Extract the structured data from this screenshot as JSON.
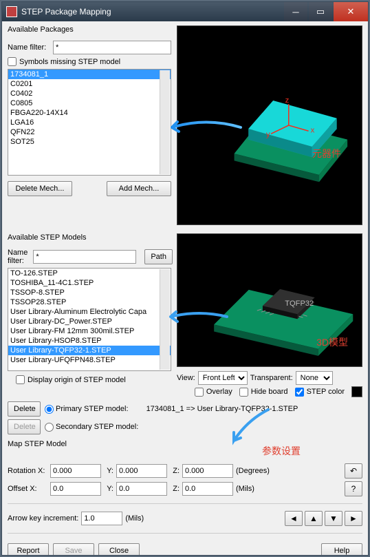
{
  "window": {
    "title": "STEP Package Mapping"
  },
  "packages": {
    "groupLabel": "Available Packages",
    "filterLabel": "Name filter:",
    "filterValue": "*",
    "missingCheck": "Symbols missing STEP model",
    "items": [
      "1734081_1",
      "C0201",
      "C0402",
      "C0805",
      "FBGA220-14X14",
      "LGA16",
      "QFN22",
      "SOT25"
    ],
    "selected": 0,
    "deleteBtn": "Delete Mech...",
    "addBtn": "Add Mech..."
  },
  "models": {
    "groupLabel": "Available STEP Models",
    "filterLabel": "Name filter:",
    "filterValue": "*",
    "pathBtn": "Path",
    "items": [
      "TO-126.STEP",
      "TOSHIBA_11-4C1.STEP",
      "TSSOP-8.STEP",
      "TSSOP28.STEP",
      "User Library-Aluminum Electrolytic Capa",
      "User Library-DC_Power.STEP",
      "User Library-FM 12mm 300mil.STEP",
      "User Library-HSOP8.STEP",
      "User Library-TQFP32-1.STEP",
      "User Library-UFQFPN48.STEP"
    ],
    "selected": 8,
    "displayOrigin": "Display origin of STEP model"
  },
  "view": {
    "viewLabel": "View:",
    "viewValue": "Front Left",
    "transparentLabel": "Transparent:",
    "transparentValue": "None",
    "overlay": "Overlay",
    "hideBoard": "Hide board",
    "stepColor": "STEP color",
    "stepColorChecked": true
  },
  "mapping": {
    "deletePrimary": "Delete",
    "primaryLabel": "Primary STEP model:",
    "mappingText": "1734081_1 => User Library-TQFP32-1.STEP",
    "deleteSecondary": "Delete",
    "secondaryLabel": "Secondary STEP model:"
  },
  "mapModel": {
    "label": "Map STEP Model",
    "rotX": "Rotation X:",
    "rotXV": "0.000",
    "rotY": "Y:",
    "rotYV": "0.000",
    "rotZ": "Z:",
    "rotZV": "0.000",
    "degrees": "(Degrees)",
    "offX": "Offset X:",
    "offXV": "0.0",
    "offY": "Y:",
    "offYV": "0.0",
    "offZ": "Z:",
    "offZV": "0.0",
    "mils": "(Mils)"
  },
  "arrowKey": {
    "label": "Arrow key increment:",
    "value": "1.0",
    "units": "(Mils)"
  },
  "footer": {
    "report": "Report",
    "save": "Save",
    "close": "Close",
    "help": "Help"
  },
  "annotations": {
    "component": "元器件",
    "model3d": "3D模型",
    "params": "参数设置"
  }
}
